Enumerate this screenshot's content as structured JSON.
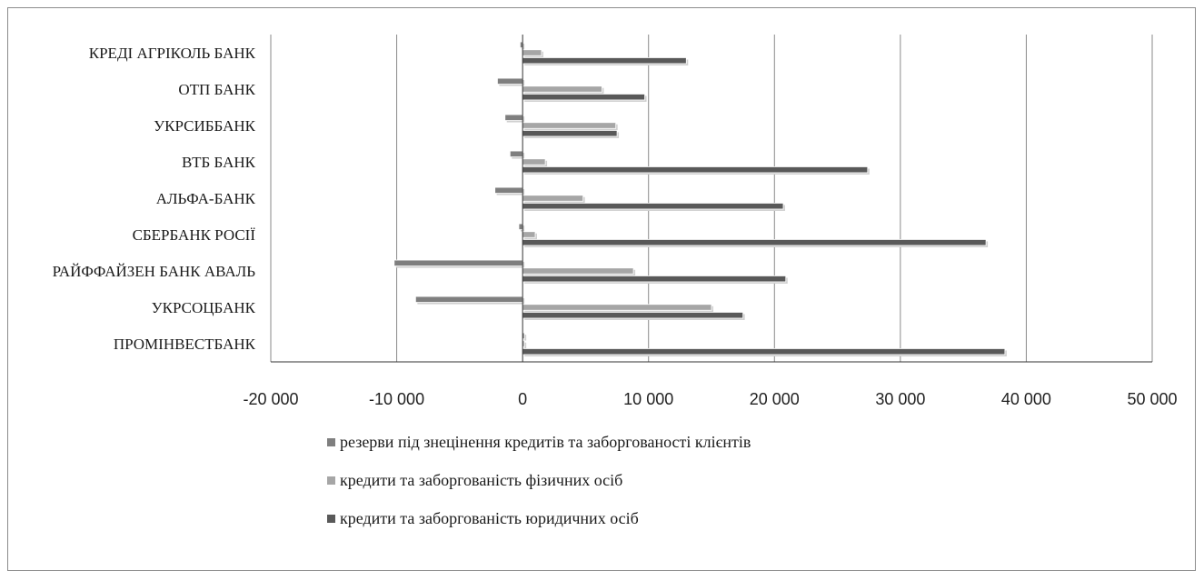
{
  "chart_data": {
    "type": "bar",
    "orientation": "horizontal",
    "categories": [
      "ПРОМІНВЕСТБАНК",
      "УКРСОЦБАНК",
      "РАЙФФАЙЗЕН БАНК АВАЛЬ",
      "СБЕРБАНК РОСІЇ",
      "АЛЬФА-БАНК",
      "ВТБ БАНК",
      "УКРСИББАНК",
      "ОТП БАНК",
      "КРЕДІ АГРІКОЛЬ БАНК"
    ],
    "series": [
      {
        "name": "резерви під знецінення кредитів та заборгованості клієнтів",
        "color": "#7f7f7f",
        "values": [
          0,
          -8500,
          -10200,
          -300,
          -2200,
          -1000,
          -1400,
          -2000,
          -200
        ]
      },
      {
        "name": "кредити та заборгованість фізичних осіб",
        "color": "#a6a6a6",
        "values": [
          0,
          15000,
          8800,
          1000,
          4800,
          1800,
          7400,
          6300,
          1500
        ]
      },
      {
        "name": "кредити та заборгованість юридичних осіб",
        "color": "#595959",
        "values": [
          38300,
          17500,
          20900,
          36800,
          20700,
          27400,
          7500,
          9700,
          13000
        ]
      }
    ],
    "xlim": [
      -20000,
      50000
    ],
    "xticks": [
      -20000,
      -10000,
      0,
      10000,
      20000,
      30000,
      40000,
      50000
    ],
    "xtick_labels": [
      "-20 000",
      "-10 000",
      "0",
      "10 000",
      "20 000",
      "30 000",
      "40 000",
      "50 000"
    ],
    "grid": "vertical",
    "legend_position": "bottom"
  }
}
